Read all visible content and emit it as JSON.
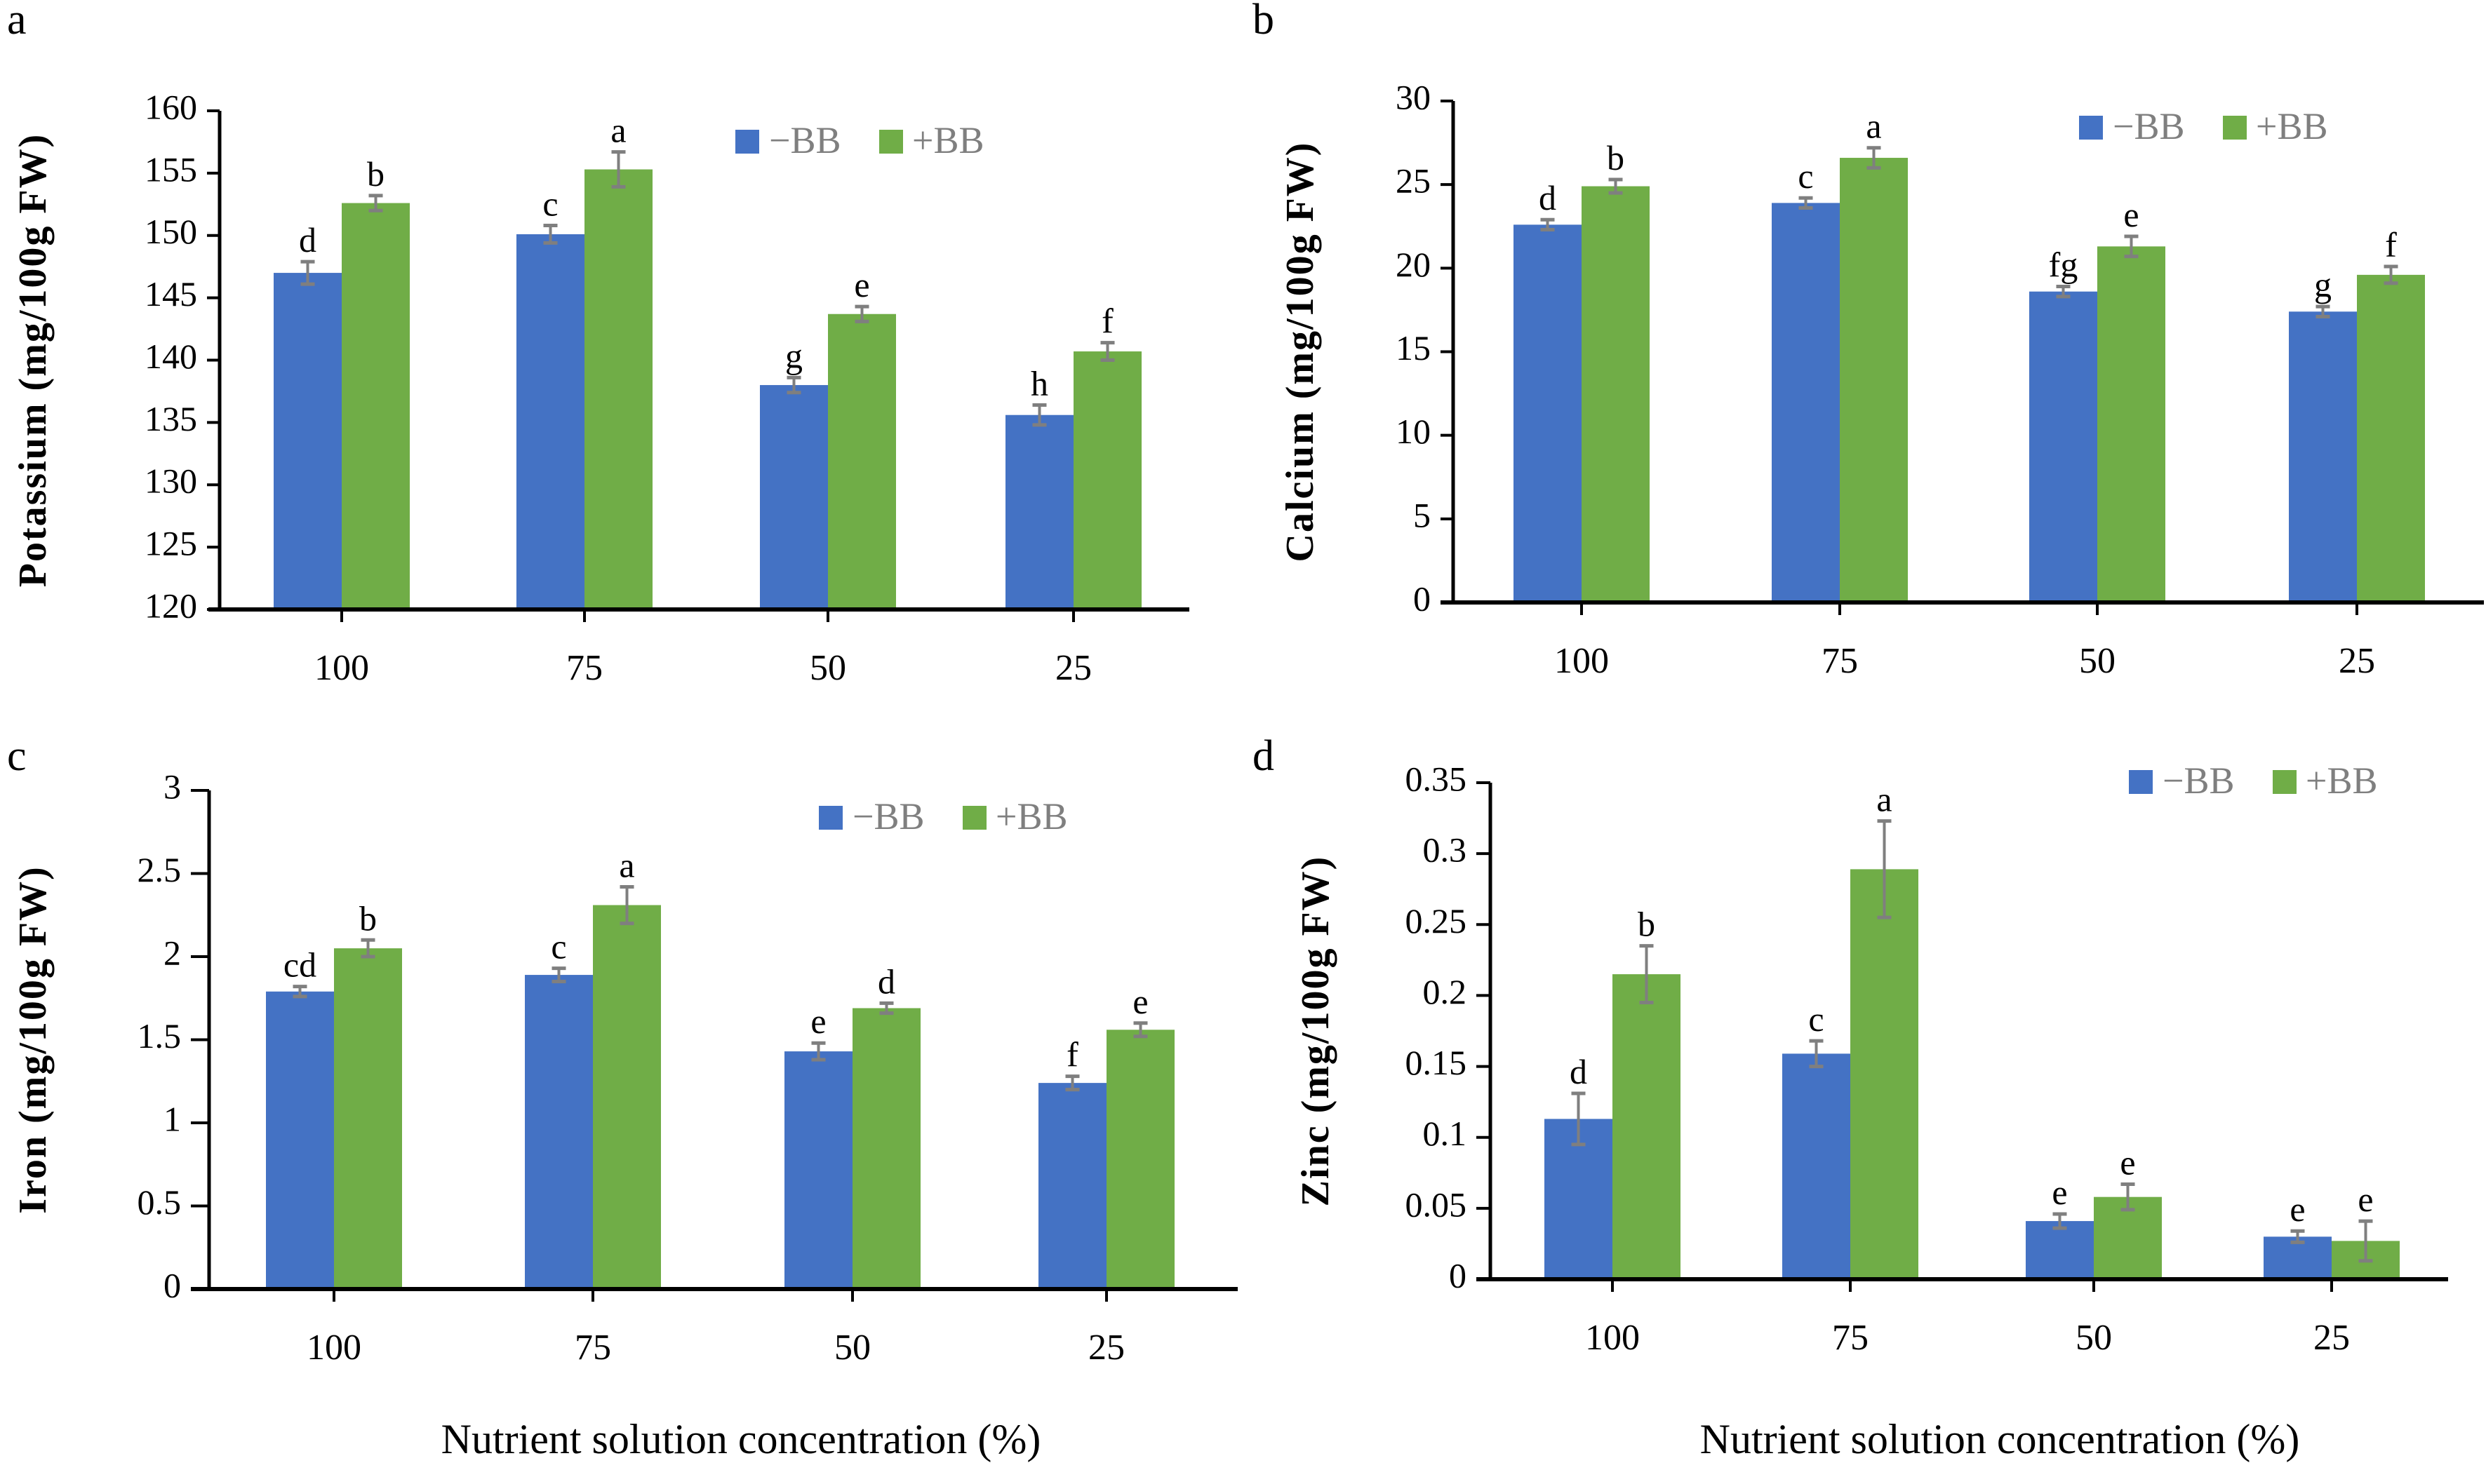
{
  "figure": {
    "x_axis_title": "Nutrient solution concentration (%)"
  },
  "colors": {
    "minus_bb": "#4472C4",
    "plus_bb": "#70AD47",
    "error_bar": "#7F7F7F",
    "axis": "#000000",
    "legend_text": "#7F7F7F"
  },
  "chart_data": [
    {
      "type": "bar",
      "panel": "a",
      "title": "",
      "ylabel": "Potassium (mg/100g FW)",
      "xlabel": "",
      "categories": [
        "100",
        "75",
        "50",
        "25"
      ],
      "ylim": [
        120,
        160
      ],
      "yticks": [
        120,
        125,
        130,
        135,
        140,
        145,
        150,
        155,
        160
      ],
      "ytick_labels": [
        "120",
        "125",
        "130",
        "135",
        "140",
        "145",
        "150",
        "155",
        "160"
      ],
      "legend": [
        "−BB",
        "+BB"
      ],
      "legend_position": "top-right",
      "grid": false,
      "series": [
        {
          "name": "−BB",
          "values": [
            147.0,
            150.1,
            138.0,
            135.6
          ],
          "errors": [
            0.9,
            0.7,
            0.6,
            0.8
          ],
          "letters": [
            "d",
            "c",
            "g",
            "h"
          ]
        },
        {
          "name": "+BB",
          "values": [
            152.6,
            155.3,
            143.7,
            140.7
          ],
          "errors": [
            0.6,
            1.4,
            0.6,
            0.7
          ],
          "letters": [
            "b",
            "a",
            "e",
            "f"
          ]
        }
      ]
    },
    {
      "type": "bar",
      "panel": "b",
      "title": "",
      "ylabel": "Calcium (mg/100g FW)",
      "xlabel": "",
      "categories": [
        "100",
        "75",
        "50",
        "25"
      ],
      "ylim": [
        0,
        30
      ],
      "yticks": [
        0,
        5,
        10,
        15,
        20,
        25,
        30
      ],
      "ytick_labels": [
        "0",
        "5",
        "10",
        "15",
        "20",
        "25",
        "30"
      ],
      "legend": [
        "−BB",
        "+BB"
      ],
      "legend_position": "top-right",
      "grid": false,
      "series": [
        {
          "name": "−BB",
          "values": [
            22.6,
            23.9,
            18.6,
            17.4
          ],
          "errors": [
            0.3,
            0.3,
            0.3,
            0.3
          ],
          "letters": [
            "d",
            "c",
            "fg",
            "g"
          ]
        },
        {
          "name": "+BB",
          "values": [
            24.9,
            26.6,
            21.3,
            19.6
          ],
          "errors": [
            0.4,
            0.6,
            0.6,
            0.5
          ],
          "letters": [
            "b",
            "a",
            "e",
            "f"
          ]
        }
      ]
    },
    {
      "type": "bar",
      "panel": "c",
      "title": "",
      "ylabel": "Iron (mg/100g FW)",
      "xlabel": "Nutrient solution concentration (%)",
      "categories": [
        "100",
        "75",
        "50",
        "25"
      ],
      "ylim": [
        0,
        3
      ],
      "yticks": [
        0,
        0.5,
        1,
        1.5,
        2,
        2.5,
        3
      ],
      "ytick_labels": [
        "0",
        "0.5",
        "1",
        "1.5",
        "2",
        "2.5",
        "3"
      ],
      "legend": [
        "−BB",
        "+BB"
      ],
      "legend_position": "top-right",
      "grid": false,
      "series": [
        {
          "name": "−BB",
          "values": [
            1.79,
            1.89,
            1.43,
            1.24
          ],
          "errors": [
            0.03,
            0.04,
            0.05,
            0.04
          ],
          "letters": [
            "cd",
            "c",
            "e",
            "f"
          ]
        },
        {
          "name": "+BB",
          "values": [
            2.05,
            2.31,
            1.69,
            1.56
          ],
          "errors": [
            0.05,
            0.11,
            0.03,
            0.04
          ],
          "letters": [
            "b",
            "a",
            "d",
            "e"
          ]
        }
      ]
    },
    {
      "type": "bar",
      "panel": "d",
      "title": "",
      "ylabel": "Zinc (mg/100g FW)",
      "xlabel": "Nutrient solution concentration (%)",
      "categories": [
        "100",
        "75",
        "50",
        "25"
      ],
      "ylim": [
        0,
        0.35
      ],
      "yticks": [
        0,
        0.05,
        0.1,
        0.15,
        0.2,
        0.25,
        0.3,
        0.35
      ],
      "ytick_labels": [
        "0",
        "0.05",
        "0.1",
        "0.15",
        "0.2",
        "0.25",
        "0.3",
        "0.35"
      ],
      "legend": [
        "−BB",
        "+BB"
      ],
      "legend_position": "top-right",
      "grid": false,
      "series": [
        {
          "name": "−BB",
          "values": [
            0.113,
            0.159,
            0.041,
            0.03
          ],
          "errors": [
            0.018,
            0.009,
            0.005,
            0.004
          ],
          "letters": [
            "d",
            "c",
            "e",
            "e"
          ]
        },
        {
          "name": "+BB",
          "values": [
            0.215,
            0.289,
            0.058,
            0.027
          ],
          "errors": [
            0.02,
            0.034,
            0.009,
            0.014
          ],
          "letters": [
            "b",
            "a",
            "e",
            "e"
          ]
        }
      ]
    }
  ]
}
